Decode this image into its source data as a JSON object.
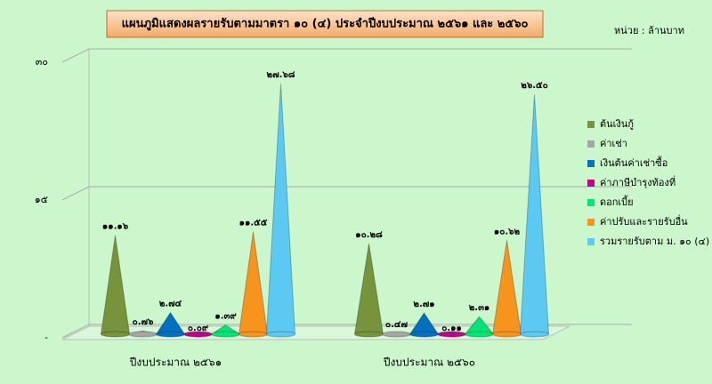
{
  "chart_data": {
    "type": "cone",
    "title": "แผนภูมิแสดงผลรายรับตามมาตรา  ๑๐ (๔) ประจำปีงบประมาณ ๒๕๖๑ และ ๒๕๖๐",
    "unit_label": "หน่วย : ล้านบาท",
    "categories": [
      "ปีงบประมาณ ๒๕๖๑",
      "ปีงบประมาณ ๒๕๖๐"
    ],
    "series": [
      {
        "name": "ต้นเงินกู้",
        "color": "#77933c",
        "values": [
          11.16,
          10.28
        ],
        "value_labels": [
          "๑๑.๑๖",
          "๑๐.๒๘"
        ]
      },
      {
        "name": "ค่าเช่า",
        "color": "#a6a6a6",
        "values": [
          0.76,
          0.47
        ],
        "value_labels": [
          "๐.๗๖",
          "๐.๔๗"
        ]
      },
      {
        "name": "เงินต้นค่าเช่าซื้อ",
        "color": "#0070c0",
        "values": [
          2.74,
          2.71
        ],
        "value_labels": [
          "๒.๗๔",
          "๒.๗๑"
        ]
      },
      {
        "name": "ค่าภาษีบำรุงท้องที่",
        "color": "#c0008a",
        "values": [
          0.09,
          0.11
        ],
        "value_labels": [
          "๐.๐๙",
          "๐.๑๑"
        ]
      },
      {
        "name": "ดอกเบี้ย",
        "color": "#00e676",
        "values": [
          1.39,
          2.31
        ],
        "value_labels": [
          "๑.๓๙",
          "๒.๓๑"
        ]
      },
      {
        "name": "ค่าปรับและรายรับอื่น",
        "color": "#f7941d",
        "values": [
          11.55,
          10.62
        ],
        "value_labels": [
          "๑๑.๕๕",
          "๑๐.๖๒"
        ]
      },
      {
        "name": "รวมรายรับตาม ม. ๑๐ (๔)",
        "color": "#5bc9f2",
        "values": [
          27.68,
          26.5
        ],
        "value_labels": [
          "๒๗.๖๘",
          "๒๖.๕๐"
        ]
      }
    ],
    "ylim": [
      0,
      30
    ],
    "yticks": [
      {
        "value": 0,
        "label": "-"
      },
      {
        "value": 15,
        "label": "๑๕"
      },
      {
        "value": 30,
        "label": "๓๐"
      }
    ],
    "grid": true,
    "legend": "right"
  }
}
